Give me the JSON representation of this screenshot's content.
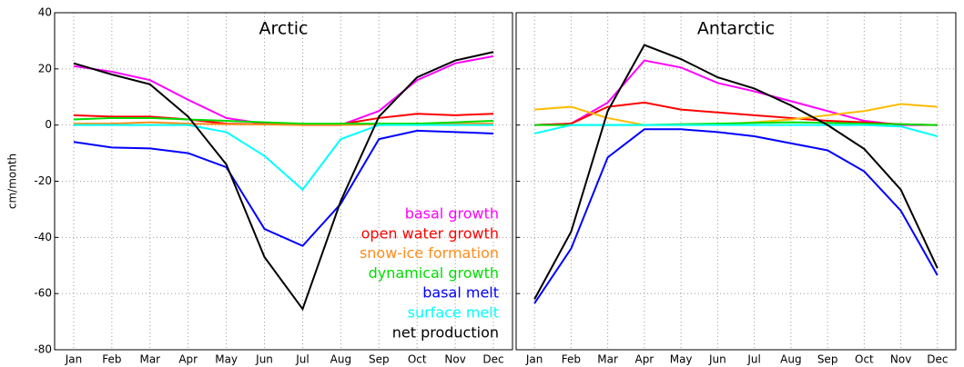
{
  "chart_data": [
    {
      "type": "line",
      "title": "Arctic",
      "ylabel": "cm/month",
      "categories": [
        "Jan",
        "Feb",
        "Mar",
        "Apr",
        "May",
        "Jun",
        "Jul",
        "Aug",
        "Sep",
        "Oct",
        "Nov",
        "Dec"
      ],
      "ylim": [
        -80,
        40
      ],
      "yticks": [
        -80,
        -60,
        -40,
        -20,
        0,
        20,
        40
      ],
      "ytick_labels": true,
      "grid": true,
      "legend": "lower right",
      "series": [
        {
          "name": "basal growth",
          "color": "#ff00ff",
          "values": [
            21,
            19,
            16,
            9,
            2.5,
            0.5,
            0,
            0,
            5,
            16,
            22,
            24.5
          ]
        },
        {
          "name": "open water growth",
          "color": "#ff0000",
          "values": [
            3.5,
            3,
            3,
            2,
            0.5,
            0.3,
            0.2,
            0.3,
            2.5,
            4,
            3.5,
            4
          ]
        },
        {
          "name": "snow-ice formation",
          "color": "#ff8c1a",
          "values": [
            0.5,
            0.5,
            1,
            0.5,
            0.3,
            0.2,
            0,
            0,
            0.3,
            0.5,
            0.5,
            0.5
          ]
        },
        {
          "name": "dynamical growth",
          "color": "#00dd00",
          "values": [
            2,
            2.5,
            2.5,
            2,
            1.5,
            1,
            0.5,
            0.5,
            0.5,
            0.5,
            1,
            1.5
          ]
        },
        {
          "name": "basal melt",
          "color": "#0000ff",
          "values": [
            -6,
            -8,
            -8.3,
            -10,
            -15,
            -37,
            -43,
            -28,
            -5,
            -2,
            -2.5,
            -3
          ]
        },
        {
          "name": "surface melt",
          "color": "#00ffff",
          "values": [
            0,
            0,
            0,
            0,
            -2.5,
            -11,
            -23,
            -5,
            0,
            0,
            0,
            0
          ]
        },
        {
          "name": "net production",
          "color": "#000000",
          "values": [
            22,
            18,
            14.5,
            3,
            -14,
            -47,
            -65.5,
            -27,
            3,
            17,
            23,
            26
          ]
        }
      ]
    },
    {
      "type": "line",
      "title": "Antarctic",
      "categories": [
        "Jan",
        "Feb",
        "Mar",
        "Apr",
        "May",
        "Jun",
        "Jul",
        "Aug",
        "Sep",
        "Oct",
        "Nov",
        "Dec"
      ],
      "ylim": [
        -80,
        40
      ],
      "yticks": [
        -80,
        -60,
        -40,
        -20,
        0,
        20,
        40
      ],
      "ytick_labels": false,
      "grid": true,
      "series": [
        {
          "color": "#ff00ff",
          "values": [
            0,
            0.5,
            8,
            23,
            20.5,
            15,
            12,
            8.5,
            5,
            1.5,
            0,
            0
          ]
        },
        {
          "color": "#ff0000",
          "values": [
            0,
            0.5,
            6.5,
            8,
            5.5,
            4.5,
            3.5,
            2.5,
            1.5,
            1,
            0.3,
            0
          ]
        },
        {
          "color": "#ffbb00",
          "values": [
            5.5,
            6.5,
            2.5,
            0,
            0,
            0.3,
            1,
            2,
            3.5,
            5,
            7.5,
            6.5
          ]
        },
        {
          "color": "#00dd00",
          "values": [
            0,
            0,
            0,
            0,
            0.3,
            0.5,
            0.8,
            1,
            0.8,
            0.5,
            0.3,
            0
          ]
        },
        {
          "color": "#0000ff",
          "values": [
            -63.5,
            -44,
            -11.5,
            -1.5,
            -1.5,
            -2.5,
            -4,
            -6.5,
            -9,
            -16.5,
            -30.5,
            -53.5
          ]
        },
        {
          "color": "#00ffff",
          "values": [
            -3,
            0,
            0,
            0,
            0,
            0,
            0,
            0,
            0,
            0,
            -0.5,
            -4
          ]
        },
        {
          "color": "#000000",
          "values": [
            -62,
            -38,
            5,
            28.5,
            23.5,
            17,
            13,
            7,
            0,
            -8.5,
            -23,
            -51
          ]
        }
      ]
    }
  ]
}
